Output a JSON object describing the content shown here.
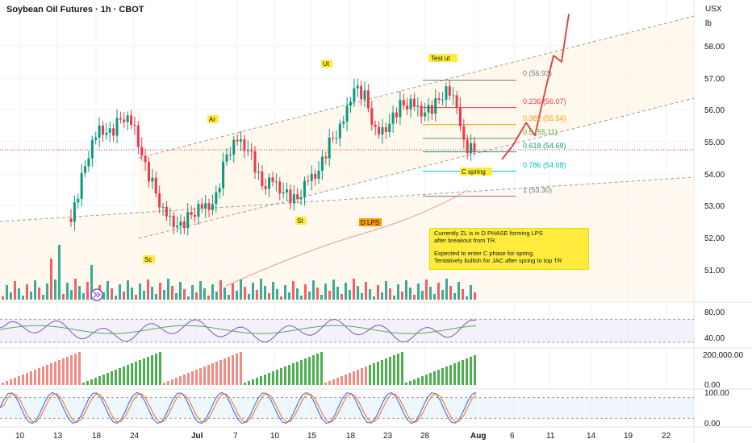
{
  "header": {
    "title": "Soybean Oil Futures · 1h · CBOT",
    "currency": "USX",
    "unit": "lb"
  },
  "price_axis": {
    "labels": [
      "58.00",
      "57.00",
      "56.00",
      "55.00",
      "54.00",
      "53.00",
      "52.00",
      "51.00"
    ]
  },
  "rsi_axis": {
    "labels": [
      "80.00",
      "40.00"
    ]
  },
  "hist_axis": {
    "labels": [
      "200,000.00",
      "0.00"
    ]
  },
  "stoch_axis": {
    "labels": [
      "100.00",
      "0.00"
    ]
  },
  "x_axis": {
    "labels": [
      "10",
      "13",
      "18",
      "24",
      "Jul",
      "7",
      "10",
      "15",
      "18",
      "23",
      "28",
      "Aug",
      "6",
      "11",
      "14",
      "19",
      "22"
    ]
  },
  "fib": [
    {
      "text": "0 (56.93)",
      "color": "#787b86"
    },
    {
      "text": "0.236 (56.07)",
      "color": "#f23645"
    },
    {
      "text": "0.382 (55.54)",
      "color": "#ff9800"
    },
    {
      "text": "0.5 (55.11)",
      "color": "#4caf50"
    },
    {
      "text": "0.618 (54.69)",
      "color": "#089981"
    },
    {
      "text": "0.786 (54.08)",
      "color": "#00bcd4"
    },
    {
      "text": "1 (53.30)",
      "color": "#787b86"
    }
  ],
  "labels": [
    {
      "text": "Ar"
    },
    {
      "text": "Ut"
    },
    {
      "text": "Test ut"
    },
    {
      "text": "St"
    },
    {
      "text": "Sc"
    },
    {
      "text": "D LPS"
    },
    {
      "text": "C spring"
    }
  ],
  "note": {
    "line1": "Currently ZL is in D PHASE forming LPS",
    "line2": "after breakout from TR.",
    "line3": "Expected to enter C phase for spring.",
    "line4": "Tentatively bullish for JAC after spring to top TR"
  },
  "colors": {
    "up": "#089981",
    "down": "#f23645",
    "projection": "#e53935",
    "label_bg": "#ffeb3b",
    "dlps_bg": "#ff9800"
  },
  "chart_data": {
    "type": "candlestick",
    "price_range": [
      50.5,
      59.0
    ],
    "price_path": [
      [
        0,
        52.6
      ],
      [
        3,
        54.6
      ],
      [
        5,
        55.5
      ],
      [
        7,
        55.3
      ],
      [
        9,
        55.8
      ],
      [
        11,
        55.5
      ],
      [
        13,
        54.2
      ],
      [
        16,
        52.8
      ],
      [
        19,
        52.4
      ],
      [
        22,
        52.9
      ],
      [
        25,
        53.2
      ],
      [
        27,
        54.6
      ],
      [
        29,
        55.1
      ],
      [
        31,
        54.8
      ],
      [
        33,
        53.6
      ],
      [
        35,
        53.8
      ],
      [
        37,
        53.5
      ],
      [
        39,
        53.1
      ],
      [
        41,
        53.8
      ],
      [
        43,
        54.2
      ],
      [
        45,
        55.0
      ],
      [
        47,
        55.5
      ],
      [
        49,
        56.8
      ],
      [
        51,
        56.4
      ],
      [
        53,
        55.2
      ],
      [
        55,
        55.6
      ],
      [
        57,
        56.1
      ],
      [
        59,
        56.2
      ],
      [
        61,
        56.0
      ],
      [
        63,
        56.1
      ],
      [
        65,
        56.6
      ],
      [
        67,
        56.3
      ],
      [
        68,
        55.0
      ],
      [
        69,
        54.8
      ],
      [
        70,
        54.7
      ]
    ],
    "projection": [
      [
        54.45
      ],
      [
        54.9
      ],
      [
        55.6
      ],
      [
        55.2
      ],
      [
        56.2
      ],
      [
        57.7
      ],
      [
        57.5
      ],
      [
        59.0
      ]
    ],
    "fib_levels": [
      56.93,
      56.07,
      55.54,
      55.11,
      54.69,
      54.08,
      53.3
    ],
    "rsi_range": [
      20,
      100
    ],
    "stoch_range": [
      -5,
      105
    ]
  }
}
